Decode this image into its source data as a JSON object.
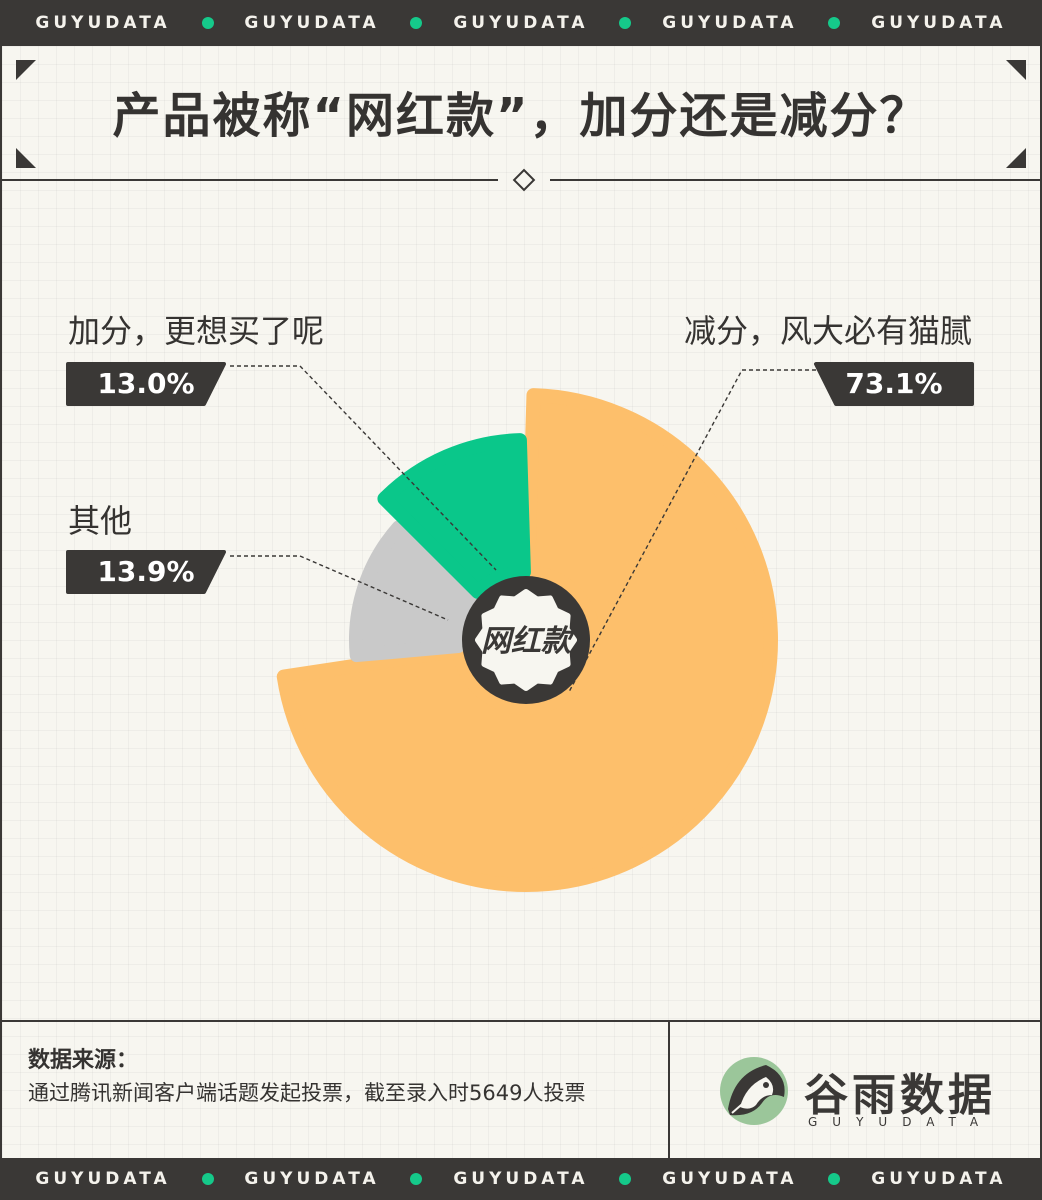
{
  "banner": {
    "words": [
      "GUYUDATA",
      "GUYUDATA",
      "GUYUDATA",
      "GUYUDATA",
      "GUYUDATA"
    ]
  },
  "title": "产品被称“网红款”，加分还是减分？",
  "chart_data": {
    "type": "pie",
    "center_label": "网红款",
    "slices": [
      {
        "label": "减分，风大必有猫腻",
        "value": 73.1,
        "display": "73.1%",
        "color": "#fdbf6b"
      },
      {
        "label": "其他",
        "value": 13.9,
        "display": "13.9%",
        "color": "#c9c9c9"
      },
      {
        "label": "加分，更想买了呢",
        "value": 13.0,
        "display": "13.0%",
        "color": "#0ac78a"
      }
    ]
  },
  "footer": {
    "source_title": "数据来源：",
    "source_text": "通过腾讯新闻客户端话题发起投票，截至录入时5649人投票",
    "brand_name": "谷雨数据",
    "brand_sub": "GUYUDATA"
  }
}
